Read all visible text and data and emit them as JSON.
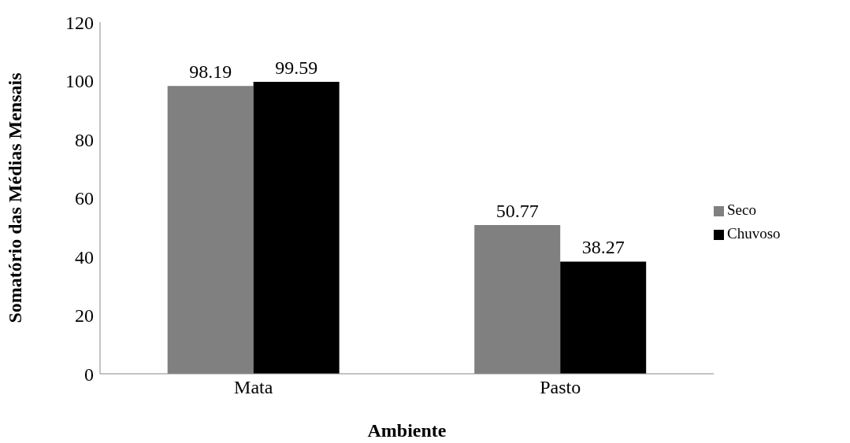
{
  "chart_data": {
    "type": "bar",
    "xlabel": "Ambiente",
    "ylabel": "Somatório das Médias Mensais",
    "categories": [
      "Mata",
      "Pasto"
    ],
    "series": [
      {
        "name": "Seco",
        "color": "#808080",
        "values": [
          98.19,
          50.77
        ]
      },
      {
        "name": "Chuvoso",
        "color": "#000000",
        "values": [
          99.59,
          38.27
        ]
      }
    ],
    "ylim": [
      0,
      120
    ],
    "yticks": [
      0,
      20,
      40,
      60,
      80,
      100,
      120
    ],
    "data_labels": true,
    "legend": "right",
    "grid": false
  }
}
